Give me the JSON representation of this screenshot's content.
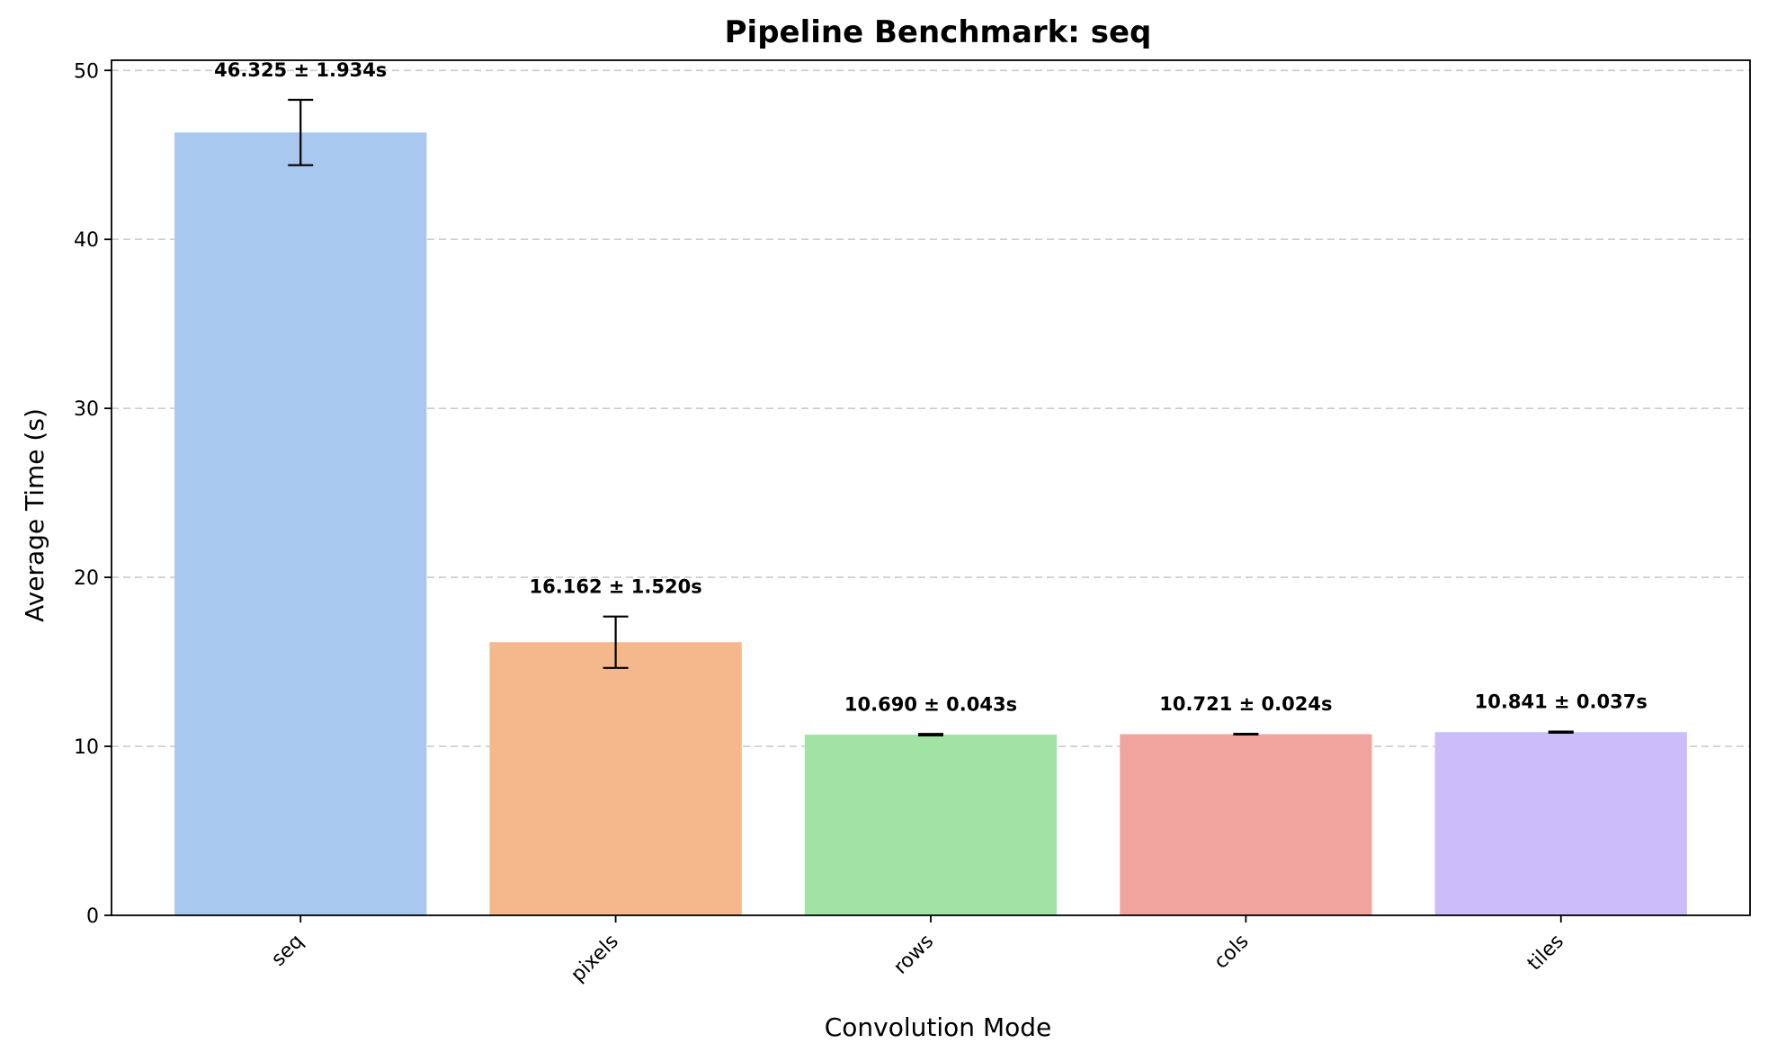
{
  "chart_data": {
    "type": "bar",
    "title": "Pipeline Benchmark: seq",
    "xlabel": "Convolution Mode",
    "ylabel": "Average Time (s)",
    "categories": [
      "seq",
      "pixels",
      "rows",
      "cols",
      "tiles"
    ],
    "values": [
      46.325,
      16.162,
      10.69,
      10.721,
      10.841
    ],
    "errors": [
      1.934,
      1.52,
      0.043,
      0.024,
      0.037
    ],
    "data_labels": [
      "46.325 ± 1.934s",
      "16.162 ± 1.520s",
      "10.690 ± 0.043s",
      "10.721 ± 0.024s",
      "10.841 ± 0.037s"
    ],
    "colors": [
      "#a8c8f0",
      "#f4b88c",
      "#a1e3a5",
      "#f1a49d",
      "#cbbef8"
    ],
    "ylim": [
      0,
      50.6
    ],
    "yticks": [
      0,
      10,
      20,
      30,
      40,
      50
    ],
    "grid": "y, dashed"
  }
}
